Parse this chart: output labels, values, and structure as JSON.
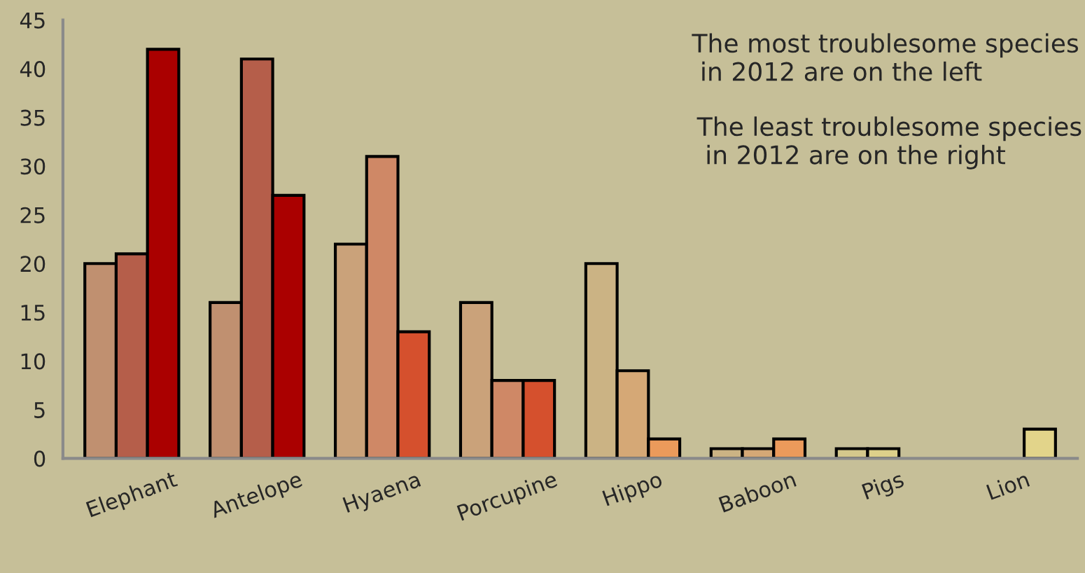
{
  "chart_data": {
    "type": "bar",
    "categories": [
      "Elephant",
      "Antelope",
      "Hyaena",
      "Porcupine",
      "Hippo",
      "Baboon",
      "Pigs",
      "Lion"
    ],
    "series": [
      {
        "colors": [
          "#c09070",
          "#c09070",
          "#caa27a",
          "#caa27a",
          "#cbb384",
          "#cbb384",
          "#d4c88c",
          "#d4c88c"
        ],
        "values": [
          20,
          16,
          22,
          16,
          20,
          1,
          1,
          null
        ]
      },
      {
        "colors": [
          "#b55e4a",
          "#b55e4a",
          "#cf8866",
          "#cf8866",
          "#d5a876",
          "#d5a876",
          "#ddd08a",
          "#ddd08a"
        ],
        "values": [
          21,
          41,
          31,
          8,
          9,
          1,
          1,
          null
        ]
      },
      {
        "colors": [
          "#aa0000",
          "#aa0000",
          "#d5502d",
          "#d5502d",
          "#eb9a5b",
          "#eb9a5b",
          "#e2d48a",
          "#e2d48a"
        ],
        "values": [
          42,
          27,
          13,
          8,
          2,
          2,
          null,
          3
        ]
      }
    ],
    "ylim": [
      0,
      45
    ],
    "yticks": [
      0,
      5,
      10,
      15,
      20,
      25,
      30,
      35,
      40,
      45
    ],
    "grid": false,
    "legend": false,
    "annotations": [
      "The most troublesome species\n in 2012 are on the left",
      "The least troublesome species\n in 2012 are on the right"
    ]
  }
}
